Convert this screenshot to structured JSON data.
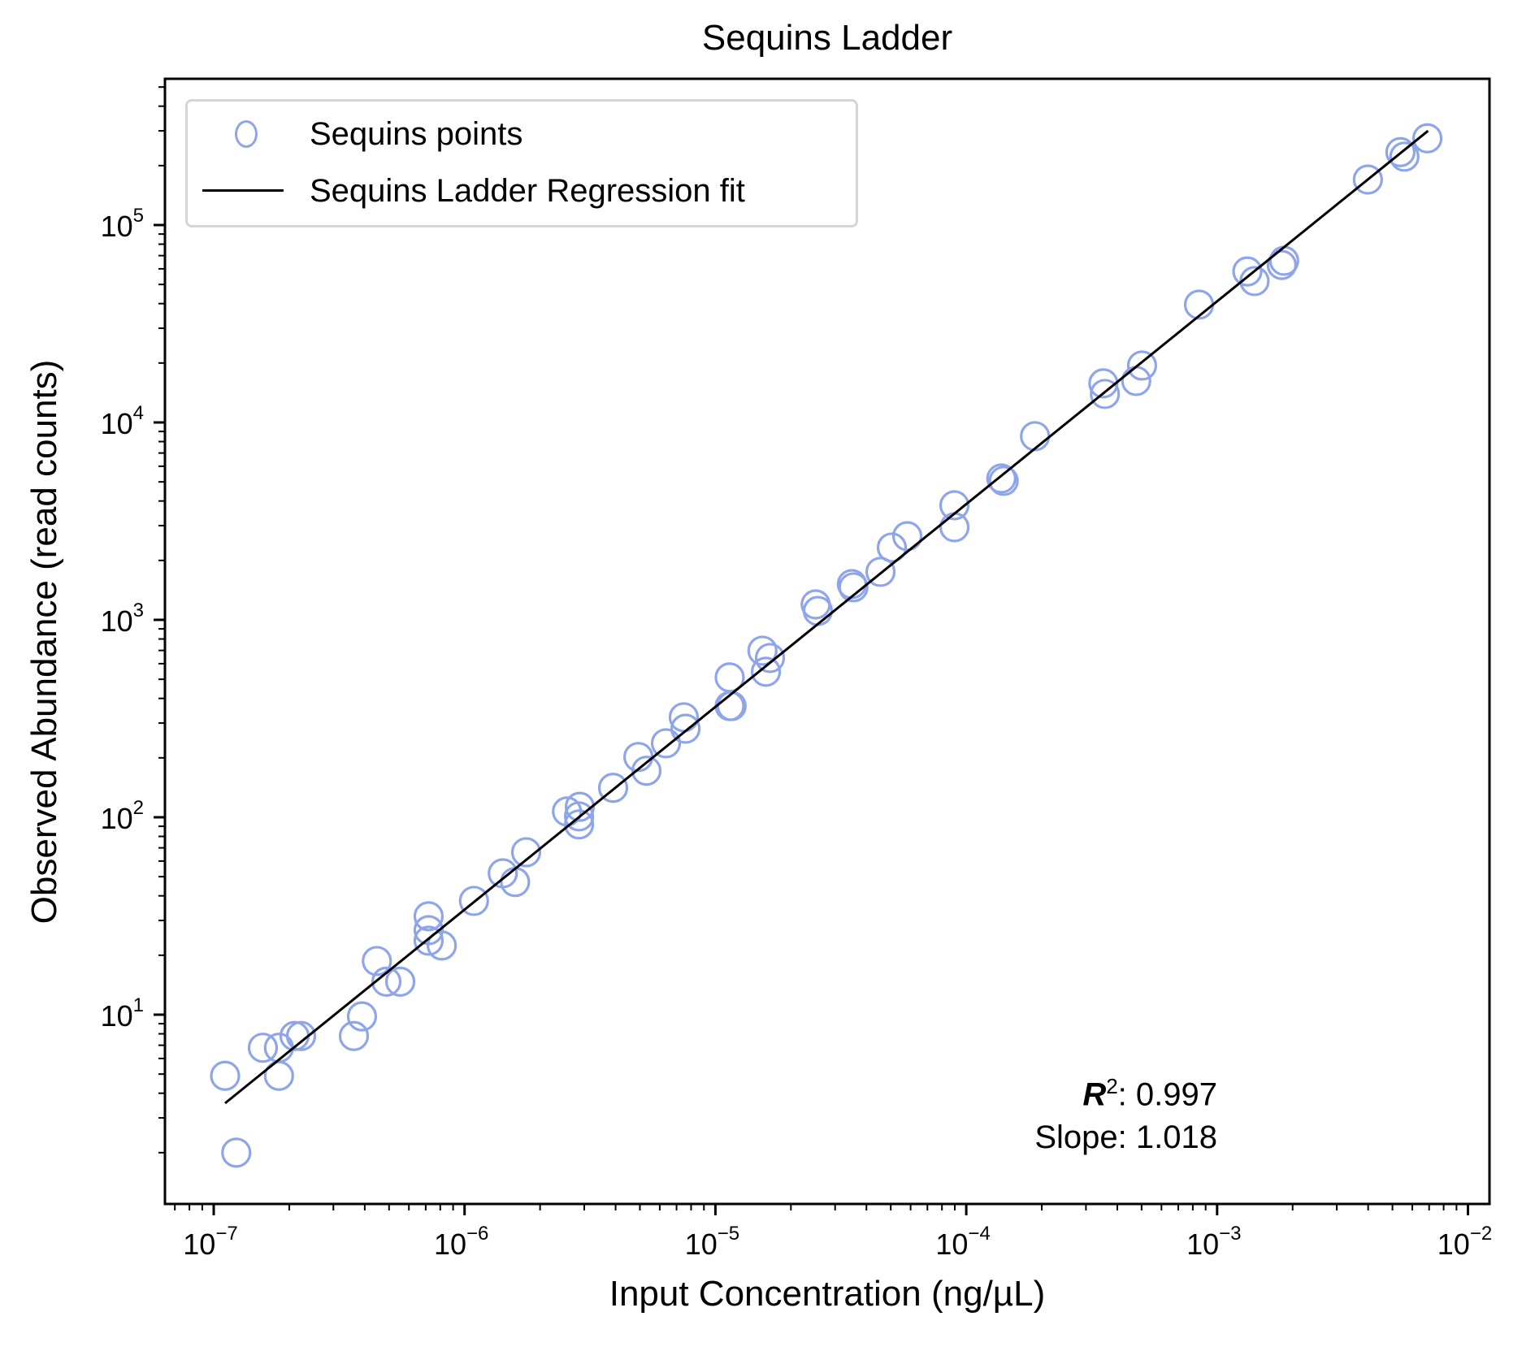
{
  "chart_data": {
    "type": "scatter",
    "title": "Sequins Ladder",
    "xlabel": "Input Concentration (ng/µL)",
    "ylabel": "Observed Abundance (read counts)",
    "xscale": "log",
    "yscale": "log",
    "xlim": [
      6.4e-08,
      0.012
    ],
    "ylim": [
      1.1,
      540000.0
    ],
    "grid": false,
    "legend_position": "upper left",
    "x_ticks": [
      {
        "exp": -7,
        "label": "10",
        "sup": "−7"
      },
      {
        "exp": -6,
        "label": "10",
        "sup": "−6"
      },
      {
        "exp": -5,
        "label": "10",
        "sup": "−5"
      },
      {
        "exp": -4,
        "label": "10",
        "sup": "−4"
      },
      {
        "exp": -3,
        "label": "10",
        "sup": "−3"
      },
      {
        "exp": -2,
        "label": "10",
        "sup": "−2"
      }
    ],
    "y_ticks": [
      {
        "exp": 1,
        "label": "10",
        "sup": "1"
      },
      {
        "exp": 2,
        "label": "10",
        "sup": "2"
      },
      {
        "exp": 3,
        "label": "10",
        "sup": "3"
      },
      {
        "exp": 4,
        "label": "10",
        "sup": "4"
      },
      {
        "exp": 5,
        "label": "10",
        "sup": "5"
      }
    ],
    "series": [
      {
        "name": "Sequins points",
        "type": "scatter",
        "marker": "open-circle",
        "color": "#8fa5ea",
        "points": [
          [
            1.11e-07,
            4.9
          ],
          [
            1.23e-07,
            2.0
          ],
          [
            1.57e-07,
            6.8
          ],
          [
            1.82e-07,
            6.8
          ],
          [
            1.82e-07,
            4.9
          ],
          [
            2.1e-07,
            7.8
          ],
          [
            2.23e-07,
            7.8
          ],
          [
            3.62e-07,
            7.8
          ],
          [
            3.9e-07,
            9.8
          ],
          [
            4.47e-07,
            18.7
          ],
          [
            4.88e-07,
            14.7
          ],
          [
            5.54e-07,
            14.7
          ],
          [
            7.19e-07,
            31.5
          ],
          [
            7.19e-07,
            26.8
          ],
          [
            7.19e-07,
            23.7
          ],
          [
            8.11e-07,
            22.4
          ],
          [
            1.09e-06,
            37.7
          ],
          [
            1.42e-06,
            52
          ],
          [
            1.59e-06,
            47
          ],
          [
            1.76e-06,
            66.5
          ],
          [
            2.56e-06,
            107
          ],
          [
            2.88e-06,
            113
          ],
          [
            2.86e-06,
            92
          ],
          [
            2.86e-06,
            101
          ],
          [
            3.91e-06,
            141
          ],
          [
            4.93e-06,
            202
          ],
          [
            5.31e-06,
            172
          ],
          [
            6.35e-06,
            237
          ],
          [
            7.48e-06,
            321
          ],
          [
            7.6e-06,
            281
          ],
          [
            1.14e-05,
            511
          ],
          [
            1.14e-05,
            366
          ],
          [
            1.16e-05,
            366
          ],
          [
            1.54e-05,
            698
          ],
          [
            1.65e-05,
            641
          ],
          [
            1.59e-05,
            546
          ],
          [
            2.51e-05,
            1197
          ],
          [
            2.56e-05,
            1109
          ],
          [
            3.5e-05,
            1517
          ],
          [
            3.55e-05,
            1462
          ],
          [
            4.55e-05,
            1750
          ],
          [
            5.05e-05,
            2325
          ],
          [
            5.82e-05,
            2653
          ],
          [
            8.97e-05,
            3805
          ],
          [
            8.97e-05,
            2946
          ],
          [
            0.000138,
            5200
          ],
          [
            0.000141,
            5058
          ],
          [
            0.000188,
            8517
          ],
          [
            0.000352,
            15780
          ],
          [
            0.000357,
            13940
          ],
          [
            0.000502,
            19420
          ],
          [
            0.000476,
            16220
          ],
          [
            0.000847,
            39500
          ],
          [
            0.00132,
            58200
          ],
          [
            0.00141,
            52000
          ],
          [
            0.00185,
            65900
          ],
          [
            0.00181,
            62800
          ],
          [
            0.00399,
            170000
          ],
          [
            0.00538,
            234000
          ],
          [
            0.00558,
            222000
          ],
          [
            0.00689,
            275000
          ]
        ]
      },
      {
        "name": "Sequins Ladder Regression fit",
        "type": "line",
        "color": "#000000",
        "points": [
          [
            1.11e-07,
            3.56
          ],
          [
            0.00693,
            300000
          ]
        ]
      }
    ],
    "annotations": {
      "r2_label": "R",
      "r2_sup": "2",
      "r2_value": ": 0.997",
      "slope_text": "Slope: 1.018"
    }
  },
  "legend": {
    "items": [
      {
        "label": "Sequins points",
        "icon": "open-circle-marker"
      },
      {
        "label": "Sequins Ladder Regression fit",
        "icon": "black-line"
      }
    ]
  }
}
